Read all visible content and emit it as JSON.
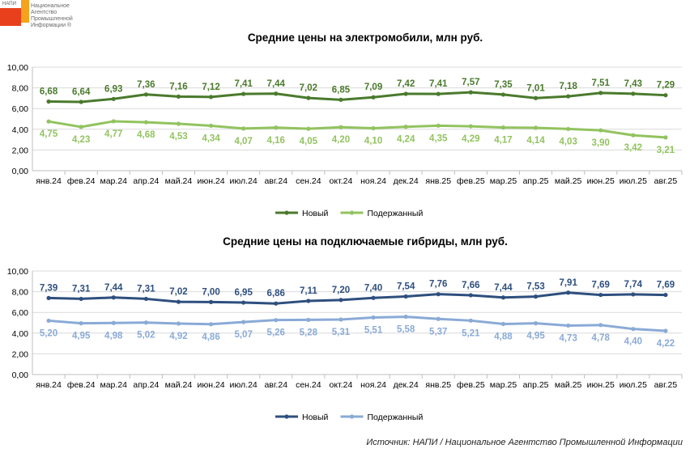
{
  "logo": {
    "abbr": "НАПИ",
    "line1": "Национальное",
    "line2": "Агентство",
    "line3": "Промышленной",
    "line4": "Информации ®"
  },
  "source": "Источник: НАПИ / Национальное Агентство Промышленной Информации",
  "chart_data": [
    {
      "type": "line",
      "title": "Средние цены на электромобили, млн руб.",
      "categories": [
        "янв.24",
        "фев.24",
        "мар.24",
        "апр.24",
        "май.24",
        "июн.24",
        "июл.24",
        "авг.24",
        "сен.24",
        "окт.24",
        "ноя.24",
        "дек.24",
        "янв.25",
        "фев.25",
        "мар.25",
        "апр.25",
        "май.25",
        "июн.25",
        "июл.25",
        "авг.25"
      ],
      "y_ticks": [
        "0,00",
        "2,00",
        "4,00",
        "6,00",
        "8,00",
        "10,00"
      ],
      "ylim": [
        0,
        10
      ],
      "grid": true,
      "legend_placement": "bottom-center",
      "series": [
        {
          "name": "Новый",
          "color": "#4a7a2c",
          "values": [
            6.68,
            6.64,
            6.93,
            7.36,
            7.16,
            7.12,
            7.41,
            7.44,
            7.02,
            6.85,
            7.09,
            7.42,
            7.41,
            7.57,
            7.35,
            7.01,
            7.18,
            7.51,
            7.43,
            7.29
          ],
          "labels": [
            "6,68",
            "6,64",
            "6,93",
            "7,36",
            "7,16",
            "7,12",
            "7,41",
            "7,44",
            "7,02",
            "6,85",
            "7,09",
            "7,42",
            "7,41",
            "7,57",
            "7,35",
            "7,01",
            "7,18",
            "7,51",
            "7,43",
            "7,29"
          ]
        },
        {
          "name": "Подержанный",
          "color": "#92c35f",
          "values": [
            4.75,
            4.23,
            4.77,
            4.68,
            4.53,
            4.34,
            4.07,
            4.16,
            4.05,
            4.2,
            4.1,
            4.24,
            4.35,
            4.29,
            4.17,
            4.14,
            4.03,
            3.9,
            3.42,
            3.21
          ],
          "labels": [
            "4,75",
            "4,23",
            "4,77",
            "4,68",
            "4,53",
            "4,34",
            "4,07",
            "4,16",
            "4,05",
            "4,20",
            "4,10",
            "4,24",
            "4,35",
            "4,29",
            "4,17",
            "4,14",
            "4,03",
            "3,90",
            "3,42",
            "3,21"
          ]
        }
      ]
    },
    {
      "type": "line",
      "title": "Средние цены на подключаемые гибриды, млн руб.",
      "categories": [
        "янв.24",
        "фев.24",
        "мар.24",
        "апр.24",
        "май.24",
        "июн.24",
        "июл.24",
        "авг.24",
        "сен.24",
        "окт.24",
        "ноя.24",
        "дек.24",
        "янв.25",
        "фев.25",
        "мар.25",
        "апр.25",
        "май.25",
        "июн.25",
        "июл.25",
        "авг.25"
      ],
      "y_ticks": [
        "0,00",
        "2,00",
        "4,00",
        "6,00",
        "8,00",
        "10,00"
      ],
      "ylim": [
        0,
        10
      ],
      "grid": true,
      "legend_placement": "bottom-center",
      "series": [
        {
          "name": "Новый",
          "color": "#2e4f7e",
          "values": [
            7.39,
            7.31,
            7.44,
            7.31,
            7.02,
            7.0,
            6.95,
            6.86,
            7.11,
            7.2,
            7.4,
            7.54,
            7.76,
            7.66,
            7.44,
            7.53,
            7.91,
            7.69,
            7.74,
            7.69
          ],
          "labels": [
            "7,39",
            "7,31",
            "7,44",
            "7,31",
            "7,02",
            "7,00",
            "6,95",
            "6,86",
            "7,11",
            "7,20",
            "7,40",
            "7,54",
            "7,76",
            "7,66",
            "7,44",
            "7,53",
            "7,91",
            "7,69",
            "7,74",
            "7,69"
          ]
        },
        {
          "name": "Подержанный",
          "color": "#8aaad6",
          "values": [
            5.2,
            4.95,
            4.98,
            5.02,
            4.92,
            4.86,
            5.07,
            5.26,
            5.28,
            5.31,
            5.51,
            5.58,
            5.37,
            5.21,
            4.88,
            4.95,
            4.73,
            4.78,
            4.4,
            4.22
          ],
          "labels": [
            "5,20",
            "4,95",
            "4,98",
            "5,02",
            "4,92",
            "4,86",
            "5,07",
            "5,26",
            "5,28",
            "5,31",
            "5,51",
            "5,58",
            "5,37",
            "5,21",
            "4,88",
            "4,95",
            "4,73",
            "4,78",
            "4,40",
            "4,22"
          ]
        }
      ]
    }
  ]
}
